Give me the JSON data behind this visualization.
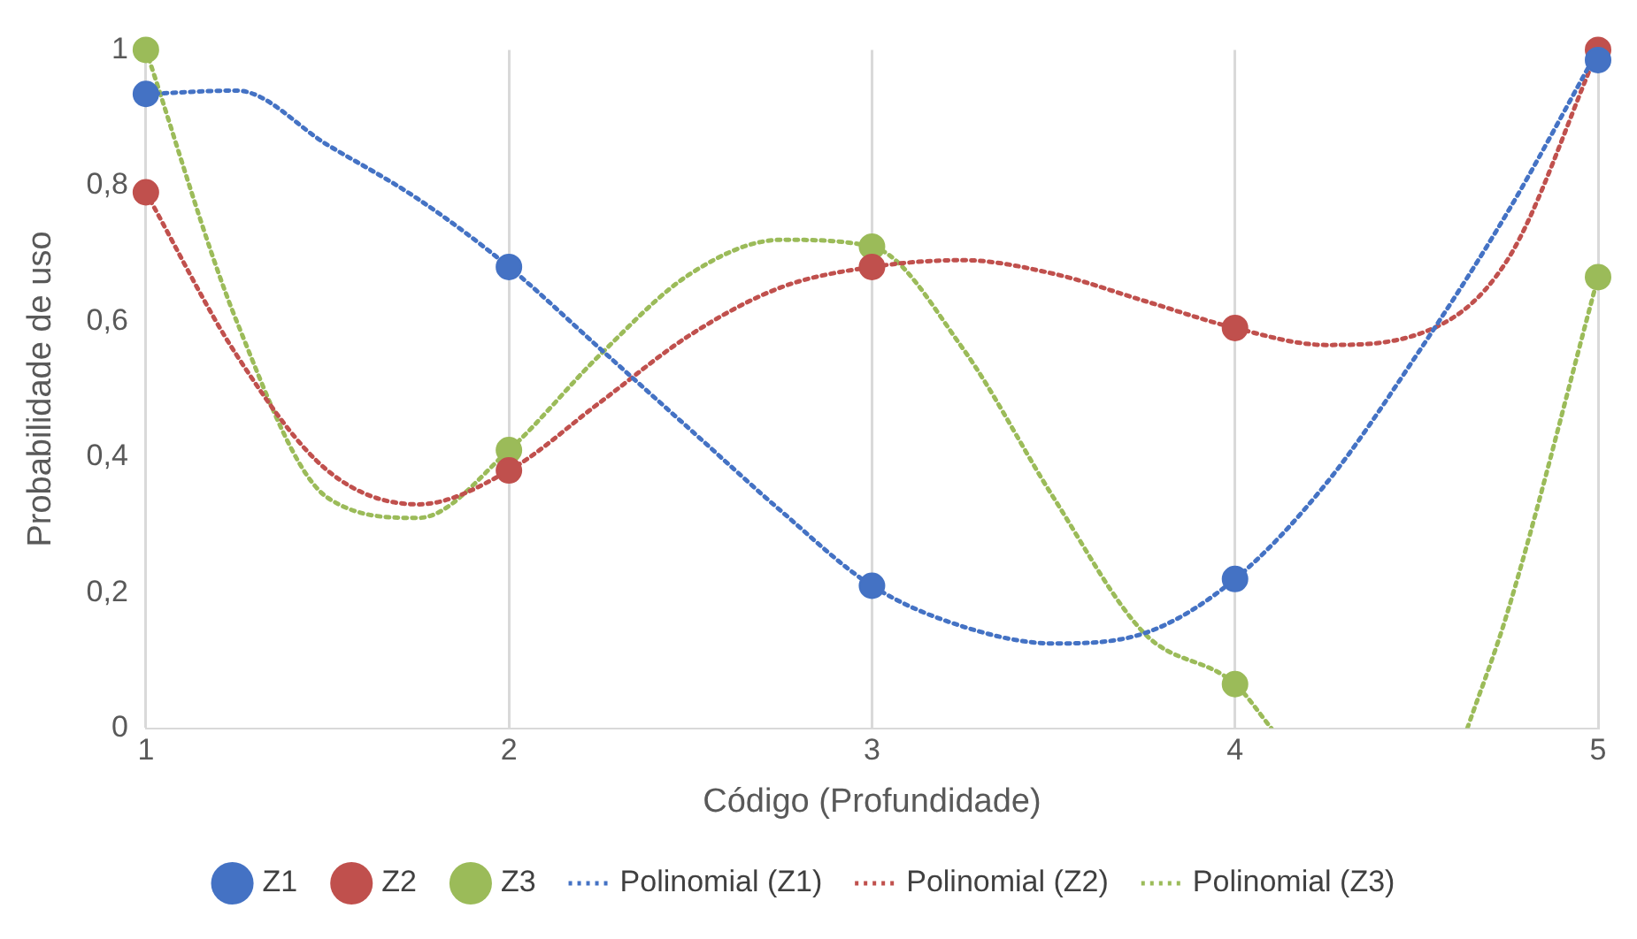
{
  "chart_data": {
    "type": "scatter",
    "xlabel": "Código (Profundidade)",
    "ylabel": "Probabilidade de uso",
    "xlim": [
      1,
      5
    ],
    "xticks": [
      1,
      2,
      3,
      4,
      5
    ],
    "ylim": [
      0,
      1
    ],
    "yticks": [
      0,
      {
        "value": 0.2,
        "label": "0,2"
      },
      {
        "value": 0.4,
        "label": "0,4"
      },
      {
        "value": 0.6,
        "label": "0,6"
      },
      {
        "value": 0.8,
        "label": "0,8"
      },
      1
    ],
    "grid": "x",
    "legend": "bottom",
    "series": [
      {
        "name": "Z1",
        "marker": "circle",
        "color": "#4472c4",
        "x": [
          1,
          2,
          3,
          4,
          5
        ],
        "values": [
          0.935,
          0.68,
          0.21,
          0.22,
          0.985
        ]
      },
      {
        "name": "Z2",
        "marker": "circle",
        "color": "#c0504d",
        "x": [
          1,
          2,
          3,
          4,
          5
        ],
        "values": [
          0.79,
          0.38,
          0.68,
          0.59,
          1.0
        ]
      },
      {
        "name": "Z3",
        "marker": "circle",
        "color": "#9bbb59",
        "x": [
          1,
          2,
          3,
          4,
          5
        ],
        "values": [
          1.0,
          0.41,
          0.71,
          0.065,
          0.665
        ]
      },
      {
        "name": "Polinomial (Z1)",
        "type": "line",
        "marker": "none",
        "line_style": "dotted",
        "color": "#4472c4",
        "x": [
          1,
          1.25,
          1.5,
          1.75,
          2,
          2.25,
          2.5,
          2.75,
          3,
          3.25,
          3.5,
          3.75,
          4,
          4.25,
          4.5,
          4.75,
          5
        ],
        "values": [
          0.935,
          0.94,
          0.86,
          0.78,
          0.68,
          0.56,
          0.44,
          0.32,
          0.21,
          0.15,
          0.125,
          0.14,
          0.22,
          0.36,
          0.55,
          0.76,
          1.0
        ]
      },
      {
        "name": "Polinomial (Z2)",
        "type": "line",
        "marker": "none",
        "line_style": "dotted",
        "color": "#c0504d",
        "x": [
          1,
          1.25,
          1.5,
          1.75,
          2,
          2.25,
          2.5,
          2.75,
          3,
          3.25,
          3.5,
          3.75,
          4,
          4.25,
          4.5,
          4.75,
          5
        ],
        "values": [
          0.79,
          0.55,
          0.38,
          0.33,
          0.38,
          0.48,
          0.58,
          0.65,
          0.68,
          0.69,
          0.67,
          0.63,
          0.59,
          0.565,
          0.58,
          0.69,
          1.0
        ]
      },
      {
        "name": "Polinomial (Z3)",
        "type": "line",
        "marker": "none",
        "line_style": "dotted",
        "color": "#9bbb59",
        "x": [
          1,
          1.25,
          1.5,
          1.75,
          2,
          2.25,
          2.5,
          2.75,
          3,
          3.25,
          3.5,
          3.75,
          4,
          4.1,
          4.37,
          4.64,
          4.75,
          5
        ],
        "values": [
          1.0,
          0.6,
          0.34,
          0.31,
          0.41,
          0.55,
          0.67,
          0.72,
          0.71,
          0.56,
          0.34,
          0.14,
          0.065,
          0,
          null,
          0,
          0.17,
          0.665
        ]
      }
    ]
  }
}
